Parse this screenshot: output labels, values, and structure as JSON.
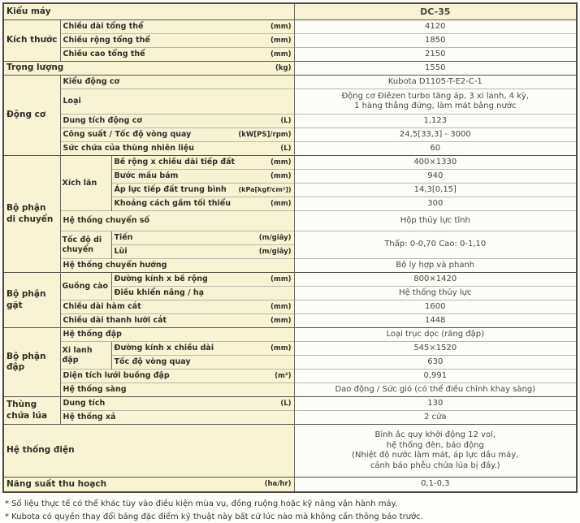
{
  "model": {
    "label": "Kiểu máy",
    "value": "DC-35"
  },
  "dimensions": {
    "category": "Kích thước",
    "length": {
      "label": "Chiều dài tổng thể",
      "unit": "(mm)",
      "value": "4120"
    },
    "width": {
      "label": "Chiều rộng tổng thể",
      "unit": "(mm)",
      "value": "1850"
    },
    "height": {
      "label": "Chiều cao tổng thể",
      "unit": "(mm)",
      "value": "2150"
    }
  },
  "weight": {
    "label": "Trọng lượng",
    "unit": "(kg)",
    "value": "1550"
  },
  "engine": {
    "category": "Động cơ",
    "model": {
      "label": "Kiểu động cơ",
      "value": "Kubota D1105-T-E2-C-1"
    },
    "type": {
      "label": "Loại",
      "value": "Động cơ Điêzen turbo tăng áp, 3 xi lanh, 4 kỳ,\n1 hàng thẳng đứng, làm mát bằng nước"
    },
    "displacement": {
      "label": "Dung tích động cơ",
      "unit": "(L)",
      "value": "1,123"
    },
    "power": {
      "label": "Công suất / Tốc độ vòng quay",
      "unit": "(kW[PS]/rpm)",
      "value": "24,5[33,3] - 3000"
    },
    "fuel_tank": {
      "label": "Sức chứa của thùng nhiên liệu",
      "unit": "(L)",
      "value": "60"
    }
  },
  "drive": {
    "category": "Bộ phận di chuyển",
    "crawler_group": "Xích lăn",
    "ground_contact": {
      "label": "Bề rộng x chiều dài tiếp đất",
      "unit": "(mm)",
      "value": "400×1330"
    },
    "lug_pitch": {
      "label": "Bước mấu bám",
      "unit": "(mm)",
      "value": "940"
    },
    "ground_pressure": {
      "label": "Áp lực tiếp đất trung bình",
      "unit": "(kPa[kgf/cm²])",
      "value": "14,3[0,15]"
    },
    "min_clearance": {
      "label": "Khoảng cách gầm tối thiểu",
      "unit": "(mm)",
      "value": "300"
    },
    "transmission": {
      "label": "Hệ thống chuyển số",
      "value": "Hộp thủy lực tĩnh"
    },
    "speed_group": "Tốc độ di chuyển",
    "speed_forward": {
      "label": "Tiến",
      "unit": "(m/giây)"
    },
    "speed_reverse": {
      "label": "Lùi",
      "unit": "(m/giây)"
    },
    "speed_value": "Thấp: 0-0,70  Cao: 0-1,10",
    "steering": {
      "label": "Hệ thống chuyển hướng",
      "value": "Bộ ly hợp và phanh"
    }
  },
  "harvesting": {
    "category": "Bộ phận gặt",
    "reel_group": "Guồng cào",
    "reel_size": {
      "label": "Đường kính x bề rộng",
      "unit": "(mm)",
      "value": "800×1420"
    },
    "reel_lift": {
      "label": "Điều khiển nâng / hạ",
      "value": "Hệ thống thủy lực"
    },
    "cutting_width": {
      "label": "Chiều dài hàm cắt",
      "unit": "(mm)",
      "value": "1600"
    },
    "cutter_bar": {
      "label": "Chiều dài thanh lưỡi cắt",
      "unit": "(mm)",
      "value": "1448"
    }
  },
  "threshing": {
    "category": "Bộ phận đập",
    "system": {
      "label": "Hệ thống đập",
      "value": "Loại trục dọc (răng đập)"
    },
    "cylinder_group": "Xi lanh đập",
    "cylinder_size": {
      "label": "Đường kính x chiều dài",
      "unit": "(mm)",
      "value": "545×1520"
    },
    "cylinder_rpm": {
      "label": "Tốc độ vòng quay",
      "value": "630"
    },
    "concave_area": {
      "label": "Diện tích lưới buồng đập",
      "unit": "(m²)",
      "value": "0,991"
    },
    "sieve": {
      "label": "Hệ thống sàng",
      "value": "Dao động / Sức gió (có thể điều chỉnh khay sàng)"
    }
  },
  "grain_tank": {
    "category": "Thùng chứa lúa",
    "capacity": {
      "label": "Dung tích",
      "unit": "(L)",
      "value": "130"
    },
    "discharge": {
      "label": "Hệ thống xả",
      "value": "2 cửa"
    }
  },
  "electrical": {
    "label": "Hệ thống điện",
    "value": "Bình ắc quy khởi động 12 vol,\nhệ thống đèn, báo động\n(Nhiệt độ nước làm mát, áp lực dầu máy,\ncảnh báo phễu chứa lúa bị đầy.)"
  },
  "yield": {
    "label": "Năng suất thu hoạch",
    "unit": "(ha/hr)",
    "value": "0,1-0,3"
  },
  "footnotes": [
    "* Số liệu thực tế có thể khác tùy vào điều kiện mùa vụ, đồng ruộng hoặc kỹ năng vận hành máy.",
    "* Kubota có quyền thay đổi bảng đặc điểm kỹ thuật này bất cứ lúc nào mà không cần thông báo trước."
  ],
  "colors": {
    "label_bg": "#f8f3d2",
    "value_bg": "#fcfcf8",
    "border_dark": "#4a4a40",
    "border_light": "#b9b8ac"
  }
}
